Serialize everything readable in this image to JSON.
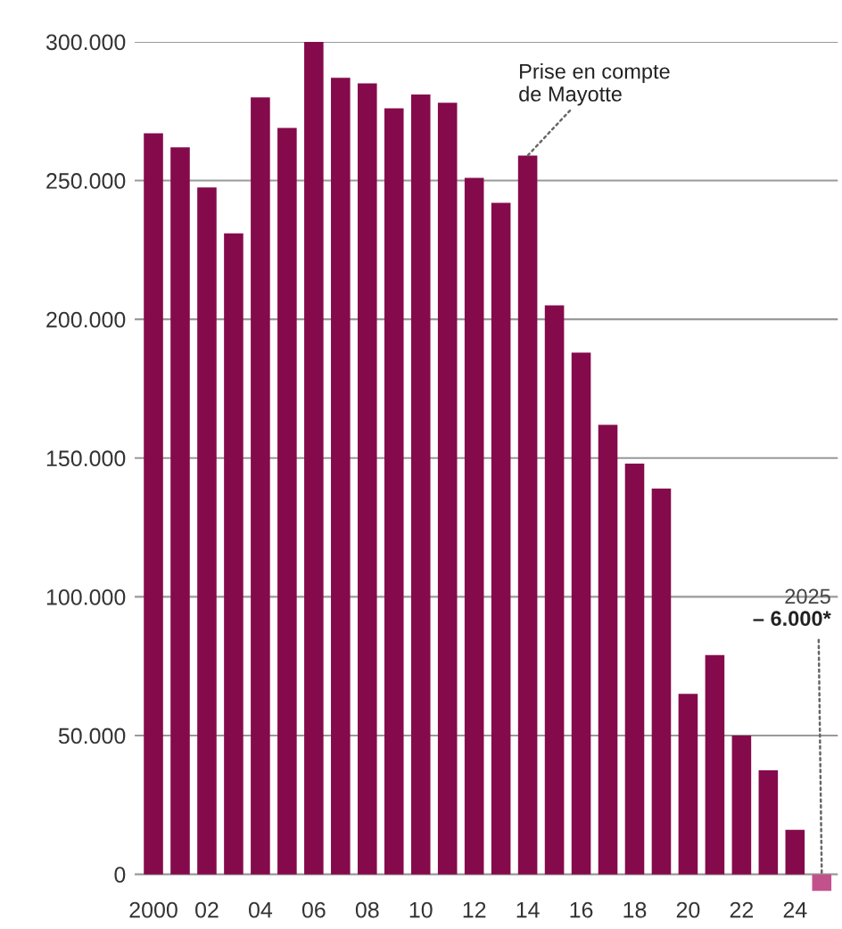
{
  "chart_data": {
    "type": "bar",
    "categories": [
      "2000",
      null,
      "02",
      null,
      "04",
      null,
      "06",
      null,
      "08",
      null,
      "10",
      null,
      "12",
      null,
      "14",
      null,
      "16",
      null,
      "18",
      null,
      "20",
      null,
      "22",
      null,
      "24",
      null
    ],
    "values": [
      267000,
      262000,
      247500,
      231000,
      280000,
      269000,
      300000,
      287000,
      285000,
      276000,
      281000,
      278000,
      251000,
      242000,
      259000,
      205000,
      188000,
      162000,
      148000,
      139000,
      65000,
      79000,
      50000,
      37500,
      16000,
      -6000
    ],
    "colors": [
      "#850a4b",
      "#850a4b",
      "#850a4b",
      "#850a4b",
      "#850a4b",
      "#850a4b",
      "#850a4b",
      "#850a4b",
      "#850a4b",
      "#850a4b",
      "#850a4b",
      "#850a4b",
      "#850a4b",
      "#850a4b",
      "#850a4b",
      "#850a4b",
      "#850a4b",
      "#850a4b",
      "#850a4b",
      "#850a4b",
      "#850a4b",
      "#850a4b",
      "#850a4b",
      "#850a4b",
      "#850a4b",
      "#c2528c"
    ],
    "value_labels": [
      null,
      null,
      null,
      null,
      null,
      null,
      null,
      null,
      null,
      null,
      null,
      null,
      null,
      null,
      null,
      null,
      null,
      null,
      null,
      null,
      null,
      null,
      null,
      null,
      null,
      "– 6.000*"
    ],
    "annotations": [
      {
        "text": "Prise en compte\nde Mayotte",
        "x": "14",
        "y": 259000
      },
      "2025"
    ],
    "ylim": [
      -8000,
      300000
    ],
    "yticks": [
      0,
      {
        "value": 50000,
        "label": "50.000"
      },
      {
        "value": 100000,
        "label": "100.000"
      },
      {
        "value": 150000,
        "label": "150.000"
      },
      {
        "value": 200000,
        "label": "200.000"
      },
      {
        "value": 250000,
        "label": "250.000"
      },
      {
        "value": 300000,
        "label": "300.000"
      }
    ],
    "grid": "y"
  }
}
